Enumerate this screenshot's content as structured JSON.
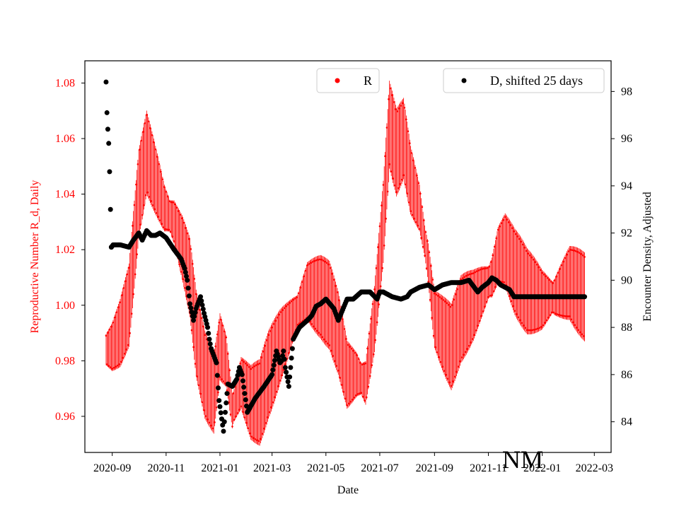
{
  "chart_data": {
    "type": "scatter",
    "xlabel": "Date",
    "ylabel_left": "Reproductive Number R_d, Daily",
    "ylabel_right": "Encounter Density, Adjusted",
    "state_label": "NM",
    "x_range": [
      "2020-08-01",
      "2022-03-20"
    ],
    "x_ticks": [
      "2020-09",
      "2020-11",
      "2021-01",
      "2021-03",
      "2021-05",
      "2021-07",
      "2021-09",
      "2021-11",
      "2022-01",
      "2022-03"
    ],
    "ylim_left": [
      0.947,
      1.088
    ],
    "yticks_left": [
      "0.96",
      "0.98",
      "1.00",
      "1.02",
      "1.04",
      "1.06",
      "1.08"
    ],
    "ylim_right": [
      82.7,
      99.3
    ],
    "yticks_right": [
      "84",
      "86",
      "88",
      "90",
      "92",
      "94",
      "96",
      "98"
    ],
    "grid": false,
    "legend": [
      {
        "label": "R",
        "color": "#ff0000",
        "placement": "top-center"
      },
      {
        "label": "D, shifted 25 days",
        "color": "#000000",
        "placement": "top-right"
      }
    ],
    "colors": {
      "R": "#ff0000",
      "D": "#000000"
    },
    "series": [
      {
        "name": "R",
        "color": "#ff0000",
        "x_start": "2020-08-25",
        "x_end": "2022-02-18",
        "x": [
          "2020-08-25",
          "2020-09-01",
          "2020-09-10",
          "2020-09-20",
          "2020-10-01",
          "2020-10-10",
          "2020-10-20",
          "2020-10-30",
          "2020-11-10",
          "2020-11-20",
          "2020-11-28",
          "2020-12-05",
          "2020-12-15",
          "2020-12-25",
          "2021-01-01",
          "2021-01-08",
          "2021-01-15",
          "2021-01-25",
          "2021-02-05",
          "2021-02-15",
          "2021-02-25",
          "2021-03-10",
          "2021-03-25",
          "2021-04-10",
          "2021-04-25",
          "2021-05-05",
          "2021-05-15",
          "2021-05-25",
          "2021-06-05",
          "2021-06-15",
          "2021-06-25",
          "2021-07-05",
          "2021-07-12",
          "2021-07-20",
          "2021-07-28",
          "2021-08-05",
          "2021-08-15",
          "2021-08-25",
          "2021-09-01",
          "2021-09-10",
          "2021-09-20",
          "2021-10-01",
          "2021-10-15",
          "2021-10-25",
          "2021-11-05",
          "2021-11-12",
          "2021-11-20",
          "2021-12-01",
          "2021-12-15",
          "2022-01-01",
          "2022-01-15",
          "2022-02-01",
          "2022-02-18"
        ],
        "y": [
          0.984,
          0.985,
          0.99,
          1.0,
          1.04,
          1.055,
          1.045,
          1.035,
          1.03,
          1.02,
          1.01,
          0.99,
          0.975,
          0.968,
          0.985,
          0.98,
          0.962,
          0.972,
          0.965,
          0.965,
          0.975,
          0.985,
          0.995,
          1.005,
          1.003,
          1.0,
          0.99,
          0.975,
          0.975,
          0.972,
          0.995,
          1.03,
          1.065,
          1.055,
          1.06,
          1.045,
          1.035,
          1.015,
          0.995,
          0.99,
          0.985,
          0.995,
          1.0,
          1.005,
          1.01,
          1.018,
          1.02,
          1.012,
          1.005,
          1.002,
          1.003,
          1.008,
          1.003
        ],
        "oscillation_amplitude": 0.016
      },
      {
        "name": "D, shifted 25 days",
        "color": "#000000",
        "x": [
          "2020-08-25",
          "2020-08-26",
          "2020-08-27",
          "2020-08-28",
          "2020-08-29",
          "2020-08-30",
          "2020-08-31",
          "2020-09-02",
          "2020-09-10",
          "2020-09-20",
          "2020-09-25",
          "2020-10-01",
          "2020-10-05",
          "2020-10-10",
          "2020-10-15",
          "2020-10-20",
          "2020-10-25",
          "2020-11-01",
          "2020-11-10",
          "2020-11-18",
          "2020-11-22",
          "2020-11-25",
          "2020-11-28",
          "2020-12-02",
          "2020-12-05",
          "2020-12-10",
          "2020-12-14",
          "2020-12-18",
          "2020-12-20",
          "2020-12-22",
          "2020-12-25",
          "2020-12-28",
          "2020-12-31",
          "2021-01-05",
          "2021-01-10",
          "2021-01-15",
          "2021-01-20",
          "2021-01-23",
          "2021-01-26",
          "2021-02-01",
          "2021-02-10",
          "2021-02-20",
          "2021-03-01",
          "2021-03-06",
          "2021-03-10",
          "2021-03-12",
          "2021-03-14",
          "2021-03-16",
          "2021-03-20",
          "2021-03-25",
          "2021-04-01",
          "2021-04-10",
          "2021-04-15",
          "2021-04-20",
          "2021-04-25",
          "2021-05-01",
          "2021-05-10",
          "2021-05-15",
          "2021-05-25",
          "2021-06-01",
          "2021-06-10",
          "2021-06-20",
          "2021-06-28",
          "2021-07-01",
          "2021-07-05",
          "2021-07-15",
          "2021-07-25",
          "2021-08-01",
          "2021-08-05",
          "2021-08-15",
          "2021-08-25",
          "2021-09-01",
          "2021-09-10",
          "2021-09-20",
          "2021-10-01",
          "2021-10-10",
          "2021-10-20",
          "2021-10-25",
          "2021-11-01",
          "2021-11-05",
          "2021-11-10",
          "2021-11-15",
          "2021-11-20",
          "2021-11-25",
          "2021-11-30",
          "2021-12-05",
          "2021-12-20",
          "2022-01-05",
          "2022-01-20",
          "2022-02-05",
          "2022-02-18"
        ],
        "y": [
          98.4,
          97.1,
          96.4,
          95.8,
          94.6,
          93.0,
          91.4,
          91.5,
          91.5,
          91.4,
          91.7,
          92.0,
          91.7,
          92.1,
          91.9,
          91.9,
          92.0,
          91.8,
          91.3,
          90.9,
          90.5,
          90.0,
          89.0,
          88.3,
          88.8,
          89.3,
          88.6,
          88.0,
          87.5,
          87.1,
          86.8,
          86.5,
          84.9,
          83.6,
          85.6,
          85.5,
          85.8,
          86.3,
          86.0,
          84.4,
          85.0,
          85.5,
          86.0,
          87.0,
          86.5,
          86.6,
          87.0,
          86.3,
          85.5,
          87.5,
          88.0,
          88.3,
          88.5,
          88.9,
          89.0,
          89.2,
          88.8,
          88.3,
          89.2,
          89.2,
          89.5,
          89.5,
          89.2,
          89.5,
          89.5,
          89.3,
          89.2,
          89.3,
          89.5,
          89.7,
          89.8,
          89.6,
          89.8,
          89.9,
          89.9,
          90.0,
          89.5,
          89.7,
          89.9,
          90.1,
          90.0,
          89.8,
          89.7,
          89.6,
          89.3,
          89.3,
          89.3,
          89.3,
          89.3,
          89.3,
          89.3
        ]
      }
    ]
  }
}
